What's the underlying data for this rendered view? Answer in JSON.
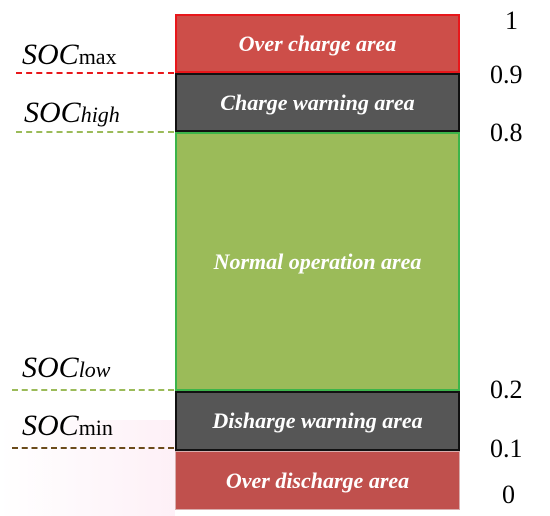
{
  "diagram": {
    "zones": [
      {
        "id": "over_charge",
        "label": "Over charge area",
        "fill": "#cd4e49",
        "border": "#e8171b"
      },
      {
        "id": "charge_warning",
        "label": "Charge warning area",
        "fill": "#565656",
        "border": "#111111"
      },
      {
        "id": "normal",
        "label": "Normal operation area",
        "fill": "#9bbb59",
        "border": "#3cb44a"
      },
      {
        "id": "discharge_warning",
        "label": "Disharge warning area",
        "fill": "#565656",
        "border": "#111111"
      },
      {
        "id": "over_discharge",
        "label": "Over discharge area",
        "fill": "#c0504d",
        "border": "#d9adad"
      }
    ],
    "scale_ticks": [
      "1",
      "0.9",
      "0.8",
      "0.2",
      "0.1",
      "0"
    ],
    "soc_labels": {
      "max": {
        "main": "SOC",
        "sub": "max",
        "line_color": "#e8171b"
      },
      "high": {
        "main": "SOC",
        "sub": "high",
        "line_color": "#9bbb59"
      },
      "low": {
        "main": "SOC",
        "sub": "low",
        "line_color": "#9bbb59"
      },
      "min": {
        "main": "SOC",
        "sub": "min",
        "line_color": "#6b4a1a"
      }
    }
  }
}
